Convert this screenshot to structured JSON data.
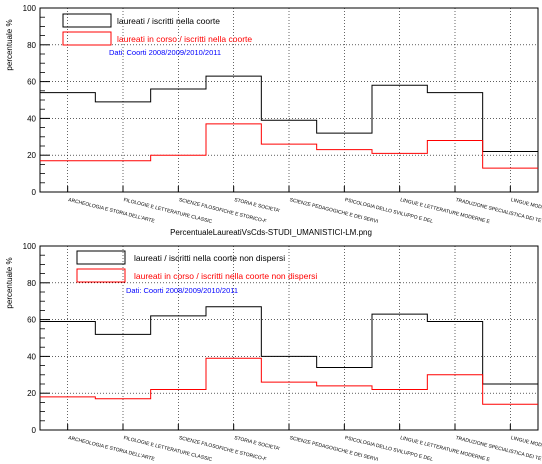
{
  "chart_data": [
    {
      "type": "line",
      "step": true,
      "ylabel": "percentuale %",
      "ylim": [
        0,
        100
      ],
      "yticks": [
        0,
        20,
        40,
        60,
        80,
        100
      ],
      "grid": true,
      "legend_placement": "top-left",
      "annotation": "Dati: Coorti 2008/2009/2010/2011",
      "categories": [
        "ARCHEOLOGIA E STORIA DELL'ARTE",
        "FILOLOGIE E LETTERATURE CLASSIC",
        "SCIENZE FILOSOFICHE E STORICO-F",
        "STORIA E SOCIETA'",
        "SCIENZE PEDAGOGICHE E DEI SERVI",
        "PSICOLOGIA DELLO SVILUPPO E DEL",
        "LINGUE E LETTERATURE MODERNE E",
        "TRADUZIONE SPECIALISTICA DEI TE",
        "LINGUE MODERNE PER LA COMUNICA"
      ],
      "series": [
        {
          "name": "laureati / iscritti nella coorte",
          "color": "#000000",
          "values": [
            54,
            49,
            56,
            63,
            39,
            32,
            58,
            54,
            22
          ]
        },
        {
          "name": "laureati in corso / iscritti nella coorte",
          "color": "#ff0000",
          "values": [
            17,
            17,
            20,
            37,
            26,
            23,
            21,
            28,
            13
          ]
        }
      ]
    },
    {
      "type": "line",
      "step": true,
      "title": "PercentualeLaureatiVsCds-STUDI_UMANISTICI-LM.png",
      "ylabel": "percentuale %",
      "ylim": [
        0,
        100
      ],
      "yticks": [
        0,
        20,
        40,
        60,
        80,
        100
      ],
      "grid": true,
      "legend_placement": "top-left",
      "annotation": "Dati: Coorti 2008/2009/2010/2011",
      "categories": [
        "ARCHEOLOGIA E STORIA DELL'ARTE",
        "FILOLOGIE E LETTERATURE CLASSIC",
        "SCIENZE FILOSOFICHE E STORICO-F",
        "STORIA E SOCIETA'",
        "SCIENZE PEDAGOGICHE E DEI SERVI",
        "PSICOLOGIA DELLO SVILUPPO E DEL",
        "LINGUE E LETTERATURE MODERNE E",
        "TRADUZIONE SPECIALISTICA DEI TE",
        "LINGUE MODERNE PER LA COMUNICA"
      ],
      "series": [
        {
          "name": "laureati / iscritti nella coorte non dispersi",
          "color": "#000000",
          "values": [
            59,
            52,
            62,
            67,
            40,
            34,
            63,
            59,
            25
          ]
        },
        {
          "name": "laureati in corso / iscritti nella coorte non dispersi",
          "color": "#ff0000",
          "values": [
            18,
            17,
            22,
            39,
            26,
            24,
            22,
            30,
            14
          ]
        }
      ]
    }
  ]
}
